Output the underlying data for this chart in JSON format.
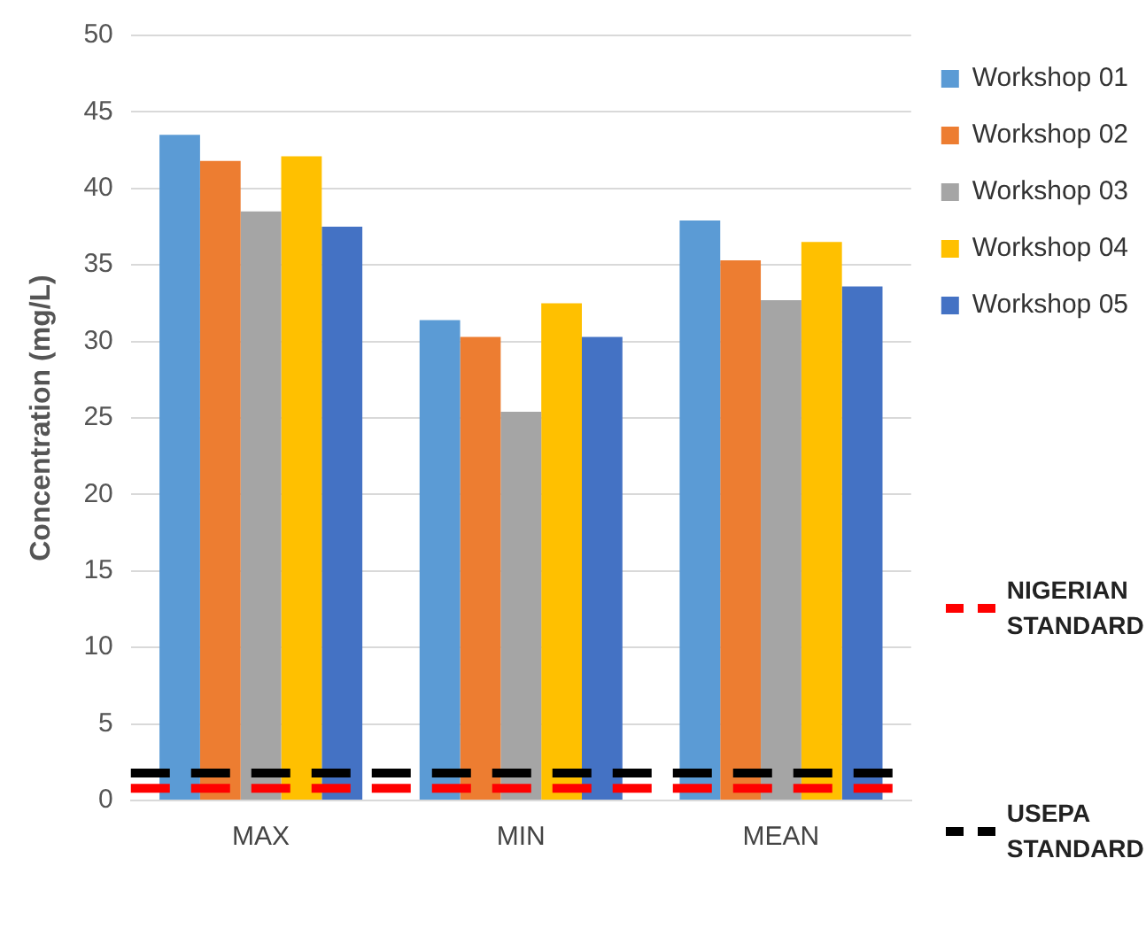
{
  "chart_data": {
    "type": "bar",
    "ylabel": "Concentration (mg/L)",
    "categories": [
      "MAX",
      "MIN",
      "MEAN"
    ],
    "series": [
      {
        "name": "Workshop 01",
        "color": "#5b9bd5",
        "values": [
          43.5,
          31.4,
          37.9
        ]
      },
      {
        "name": "Workshop 02",
        "color": "#ed7d31",
        "values": [
          41.8,
          30.3,
          35.3
        ]
      },
      {
        "name": "Workshop 03",
        "color": "#a5a5a5",
        "values": [
          38.5,
          25.4,
          32.7
        ]
      },
      {
        "name": "Workshop 04",
        "color": "#ffc000",
        "values": [
          42.1,
          32.5,
          36.5
        ]
      },
      {
        "name": "Workshop 05",
        "color": "#4472c4",
        "values": [
          37.5,
          30.3,
          33.6
        ]
      }
    ],
    "ylim": [
      0,
      50
    ],
    "yticks": [
      0,
      5,
      10,
      15,
      20,
      25,
      30,
      35,
      40,
      45,
      50
    ],
    "grid": "y",
    "legend": "right",
    "ref_lines": [
      {
        "axis": "y",
        "value": 0.8,
        "label": "NIGERIAN STANDARD",
        "color": "#ff0000",
        "line_style": "dashed"
      },
      {
        "axis": "y",
        "value": 1.8,
        "label": "USEPA STANDARD",
        "color": "#000000",
        "line_style": "dashed"
      }
    ]
  }
}
